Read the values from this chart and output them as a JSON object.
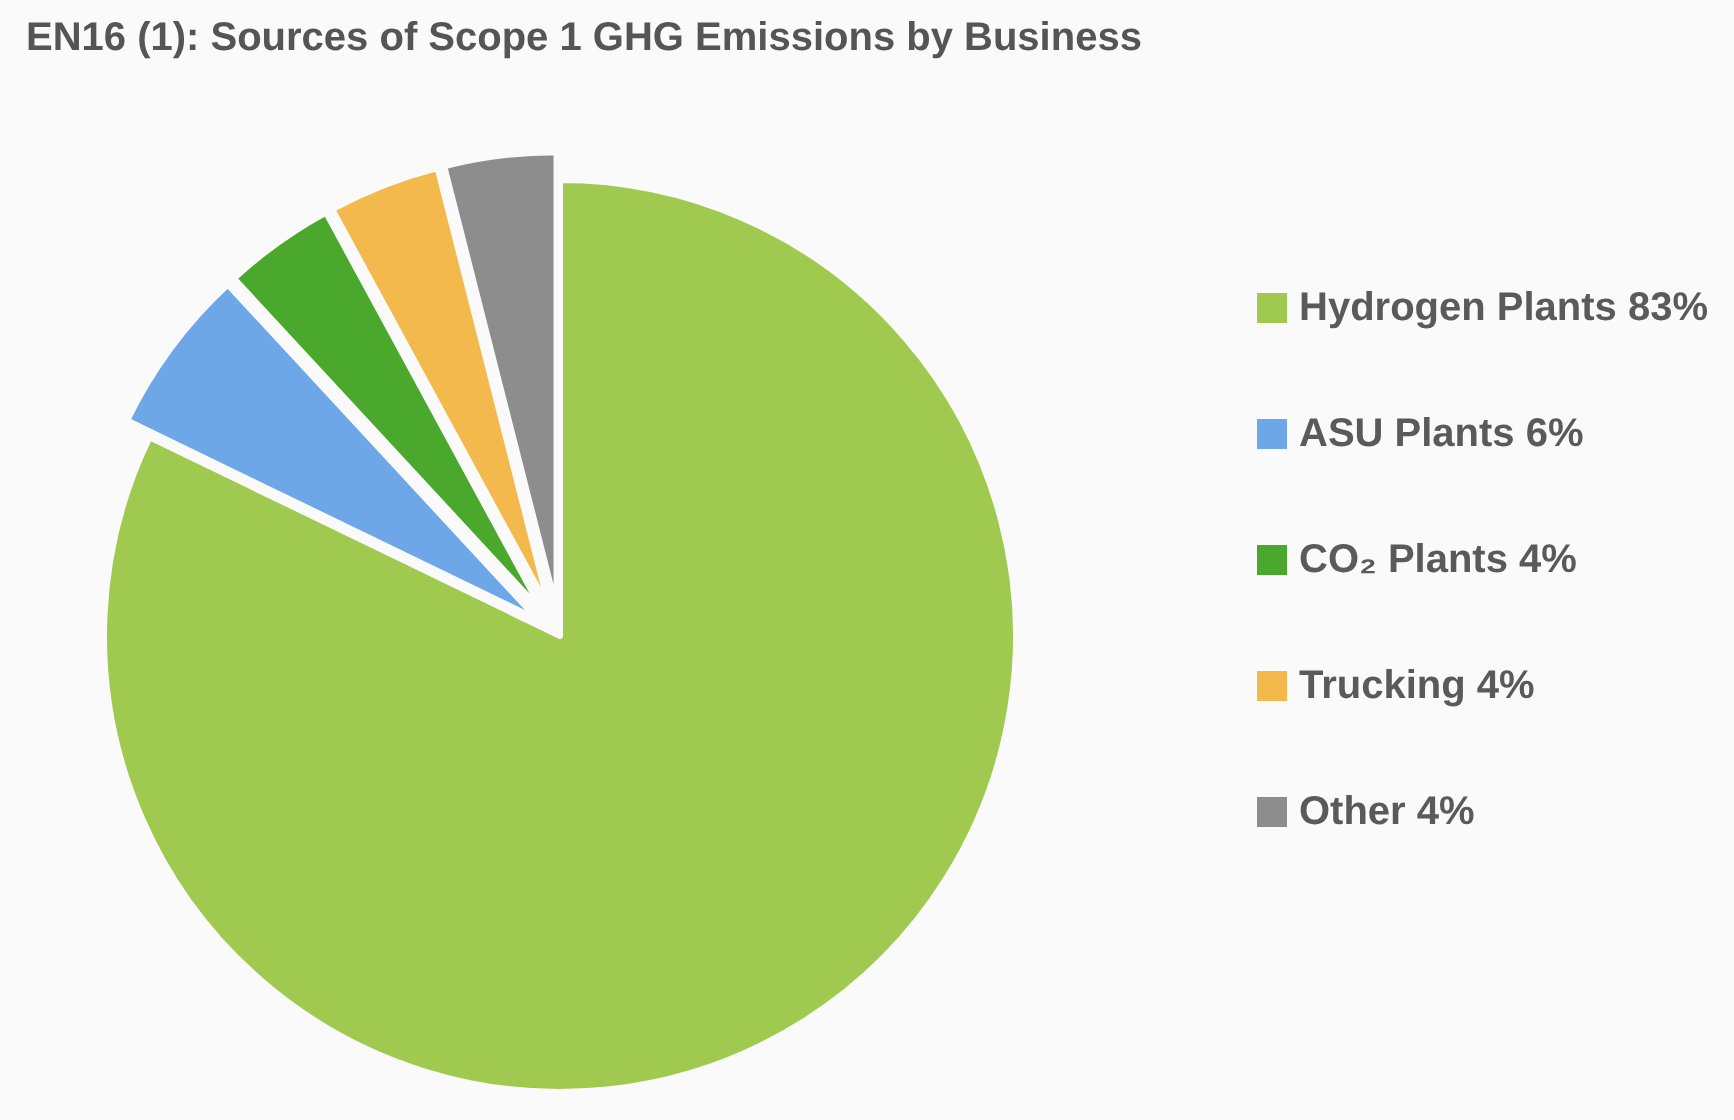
{
  "chart_data": {
    "type": "pie",
    "title": "EN16 (1): Sources of Scope 1 GHG Emissions by Business",
    "categories": [
      "Hydrogen Plants 83%",
      "ASU Plants 6%",
      "CO₂ Plants 4%",
      "Trucking 4%",
      "Other 4%"
    ],
    "values": [
      83,
      6,
      4,
      4,
      4
    ],
    "colors": [
      "#a0c94f",
      "#6ea7e8",
      "#4aa82c",
      "#f4b94c",
      "#8d8d8d"
    ],
    "legend": "right"
  }
}
